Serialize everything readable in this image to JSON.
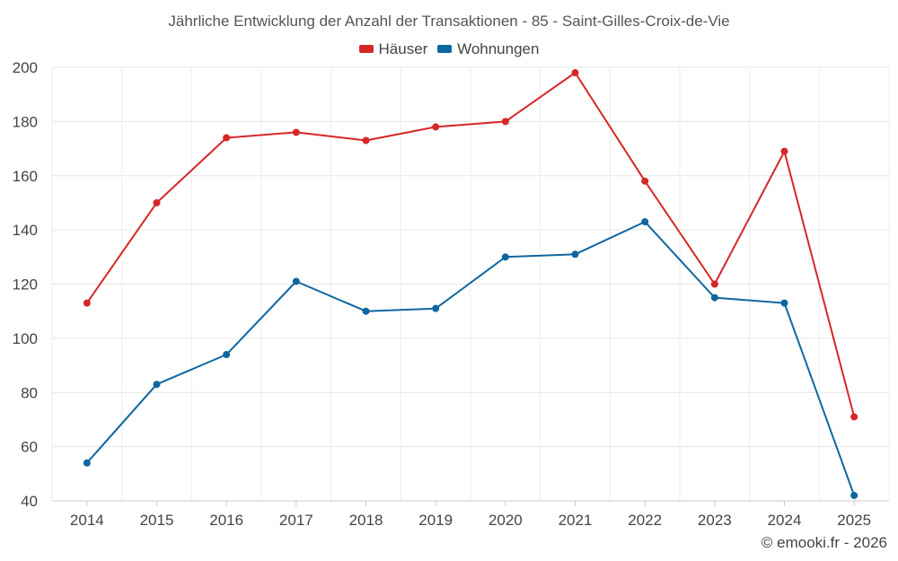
{
  "chart_data": {
    "type": "line",
    "title": "Jährliche Entwicklung der Anzahl der Transaktionen - 85 - Saint-Gilles-Croix-de-Vie",
    "xlabel": "",
    "ylabel": "",
    "categories": [
      "2014",
      "2015",
      "2016",
      "2017",
      "2018",
      "2019",
      "2020",
      "2021",
      "2022",
      "2023",
      "2024",
      "2025"
    ],
    "series": [
      {
        "name": "Häuser",
        "color": "#d62728",
        "values": [
          113,
          150,
          174,
          176,
          173,
          178,
          180,
          198,
          158,
          120,
          169,
          71
        ]
      },
      {
        "name": "Wohnungen",
        "color": "#0e67a0",
        "values": [
          54,
          83,
          94,
          121,
          110,
          111,
          130,
          131,
          143,
          115,
          113,
          42
        ]
      }
    ],
    "ylim": [
      40,
      200
    ],
    "yticks": [
      40,
      60,
      80,
      100,
      120,
      140,
      160,
      180,
      200
    ],
    "grid": true,
    "legend_position": "top-center"
  },
  "footer": {
    "copyright": "© emooki.fr - 2026"
  }
}
